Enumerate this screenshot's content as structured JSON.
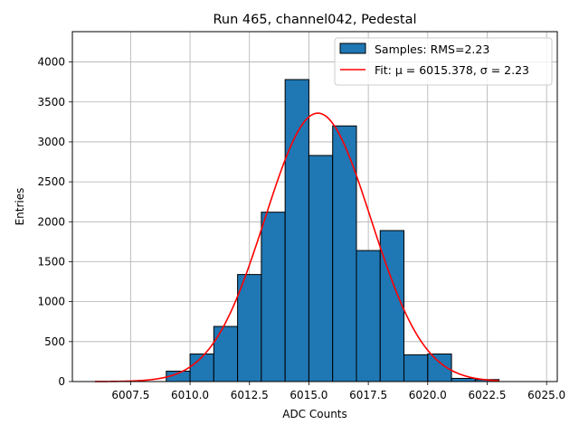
{
  "chart_data": {
    "type": "bar",
    "title": "Run 465, channel042, Pedestal",
    "xlabel": "ADC Counts",
    "ylabel": "Entries",
    "xlim": [
      6005.05,
      6025.45
    ],
    "ylim": [
      0,
      4380
    ],
    "xticks": [
      6007.5,
      6010.0,
      6012.5,
      6015.0,
      6017.5,
      6020.0,
      6022.5,
      6025.0
    ],
    "xtick_labels": [
      "6007.5",
      "6010.0",
      "6012.5",
      "6015.0",
      "6017.5",
      "6020.0",
      "6022.5",
      "6025.0"
    ],
    "yticks": [
      0,
      500,
      1000,
      1500,
      2000,
      2500,
      3000,
      3500,
      4000
    ],
    "ytick_labels": [
      "0",
      "500",
      "1000",
      "1500",
      "2000",
      "2500",
      "3000",
      "3500",
      "4000"
    ],
    "grid": true,
    "legend_position": "top-right",
    "histogram": {
      "name": "Samples: RMS=2.23",
      "color": "#1f77b4",
      "edge_color": "#000000",
      "bin_edges": [
        6009,
        6010,
        6011,
        6012,
        6013,
        6014,
        6015,
        6016,
        6017,
        6018,
        6019,
        6020,
        6021,
        6022,
        6023
      ],
      "counts": [
        130,
        345,
        690,
        1340,
        2120,
        3780,
        2830,
        3200,
        1640,
        1890,
        335,
        345,
        40,
        25
      ]
    },
    "fit": {
      "name": "Fit: μ = 6015.378, σ = 2.23",
      "color": "#ff0000",
      "mu": 6015.378,
      "sigma": 2.23,
      "amplitude": 3360,
      "x_range": [
        6006,
        6023
      ]
    }
  }
}
